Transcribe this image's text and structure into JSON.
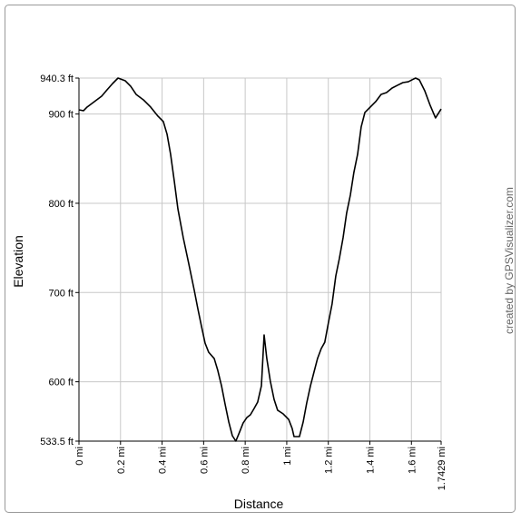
{
  "chart_data": {
    "type": "line",
    "y_label": "Elevation",
    "x_label": "Distance",
    "credit": "created by GPSVisualizer.com",
    "color": "#000000",
    "grid": true,
    "xlim": [
      0,
      1.7429
    ],
    "ylim": [
      533.5,
      940.3
    ],
    "xticks": [
      {
        "value": 0,
        "label": "0 mi"
      },
      {
        "value": 0.2,
        "label": "0.2 mi"
      },
      {
        "value": 0.4,
        "label": "0.4 mi"
      },
      {
        "value": 0.6,
        "label": "0.6 mi"
      },
      {
        "value": 0.8,
        "label": "0.8 mi"
      },
      {
        "value": 1,
        "label": "1 mi"
      },
      {
        "value": 1.2,
        "label": "1.2 mi"
      },
      {
        "value": 1.4,
        "label": "1.4 mi"
      },
      {
        "value": 1.6,
        "label": "1.6 mi"
      },
      {
        "value": 1.7429,
        "label": "1.7429 mi"
      }
    ],
    "yticks": [
      {
        "value": 533.5,
        "label": "533.5 ft"
      },
      {
        "value": 600,
        "label": "600 ft"
      },
      {
        "value": 700,
        "label": "700 ft"
      },
      {
        "value": 800,
        "label": "800 ft"
      },
      {
        "value": 900,
        "label": "900 ft"
      },
      {
        "value": 940.3,
        "label": "940.3 ft"
      }
    ],
    "x": [
      0,
      0.022,
      0.039,
      0.074,
      0.109,
      0.135,
      0.162,
      0.188,
      0.223,
      0.249,
      0.275,
      0.31,
      0.345,
      0.38,
      0.406,
      0.424,
      0.441,
      0.459,
      0.476,
      0.502,
      0.528,
      0.555,
      0.572,
      0.59,
      0.607,
      0.624,
      0.651,
      0.668,
      0.686,
      0.703,
      0.721,
      0.738,
      0.755,
      0.773,
      0.79,
      0.808,
      0.825,
      0.843,
      0.86,
      0.878,
      0.891,
      0.904,
      0.921,
      0.939,
      0.956,
      0.983,
      1.009,
      1.026,
      1.035,
      1.061,
      1.079,
      1.096,
      1.114,
      1.131,
      1.148,
      1.166,
      1.183,
      1.201,
      1.218,
      1.236,
      1.253,
      1.271,
      1.288,
      1.306,
      1.323,
      1.341,
      1.358,
      1.376,
      1.402,
      1.428,
      1.454,
      1.48,
      1.507,
      1.533,
      1.559,
      1.585,
      1.603,
      1.62,
      1.638,
      1.664,
      1.69,
      1.716,
      1.7429
    ],
    "values": [
      904.7,
      903.7,
      907.8,
      913.9,
      920.0,
      927.1,
      934.2,
      940.3,
      937.2,
      931.1,
      922.0,
      915.9,
      907.8,
      897.6,
      891.5,
      877.3,
      854.9,
      824.4,
      793.9,
      761.3,
      732.8,
      702.3,
      682.0,
      661.7,
      643.3,
      633.2,
      626.0,
      612.8,
      595.5,
      575.2,
      554.9,
      539.6,
      533.5,
      543.7,
      553.8,
      559.9,
      563.0,
      570.1,
      577.2,
      595.5,
      652.5,
      626.0,
      600.6,
      580.3,
      568.1,
      564.0,
      557.9,
      547.7,
      538.6,
      538.6,
      554.9,
      576.2,
      595.5,
      610.8,
      626.0,
      637.2,
      644.3,
      666.7,
      687.1,
      718.6,
      737.9,
      761.3,
      788.8,
      809.1,
      834.5,
      854.9,
      885.4,
      901.7,
      907.8,
      913.9,
      922.0,
      924.0,
      929.1,
      932.2,
      935.2,
      936.2,
      938.3,
      940.3,
      938.3,
      926.1,
      909.8,
      895.6,
      905.7
    ]
  }
}
